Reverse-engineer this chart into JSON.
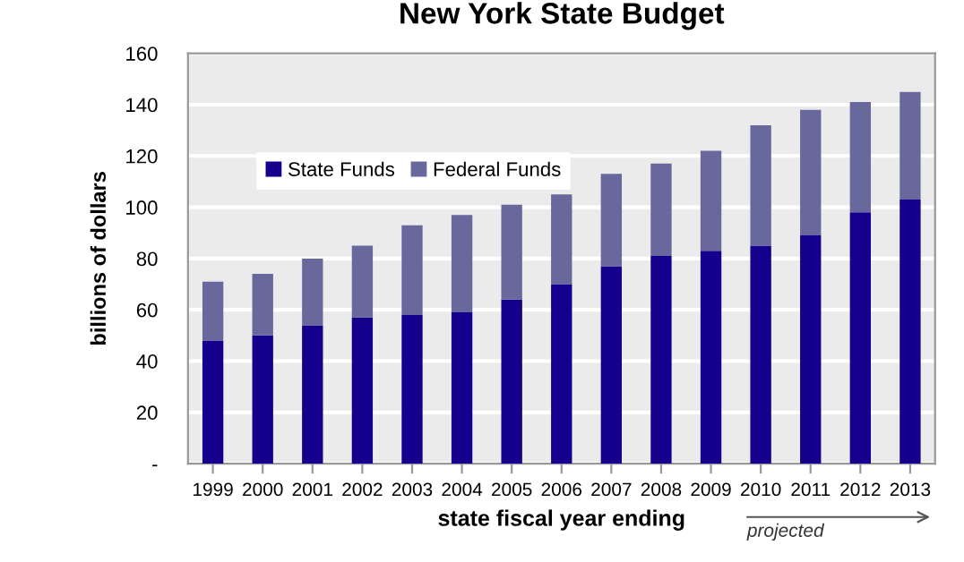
{
  "chart_data": {
    "type": "bar",
    "title": "New York State Budget",
    "xlabel": "state fiscal year ending",
    "ylabel": "billions of dollars",
    "categories": [
      "1999",
      "2000",
      "2001",
      "2002",
      "2003",
      "2004",
      "2005",
      "2006",
      "2007",
      "2008",
      "2009",
      "2010",
      "2011",
      "2012",
      "2013"
    ],
    "stacked": true,
    "series": [
      {
        "name": "State Funds",
        "color": "#14008c",
        "values": [
          48,
          50,
          54,
          57,
          58,
          59,
          64,
          70,
          77,
          81,
          83,
          85,
          89,
          98,
          103
        ]
      },
      {
        "name": "Federal Funds",
        "color": "#68689c",
        "values": [
          23,
          24,
          26,
          28,
          35,
          38,
          37,
          35,
          36,
          36,
          39,
          47,
          49,
          43,
          42
        ]
      }
    ],
    "ylim": [
      0,
      160
    ],
    "yticks": [
      {
        "value": 0,
        "label": "-"
      },
      20,
      40,
      60,
      80,
      100,
      120,
      140,
      160
    ],
    "grid": "y",
    "legend": "top left",
    "annotations": [
      "projected"
    ]
  }
}
